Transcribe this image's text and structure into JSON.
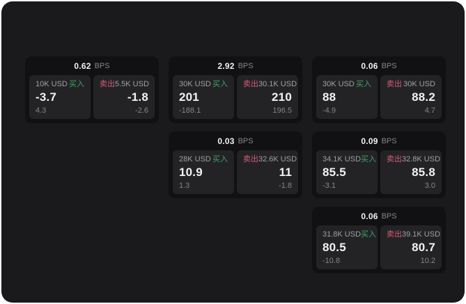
{
  "theme": {
    "page_bg": "#ffffff",
    "panel_bg": "#1a1a1c",
    "card_bg": "#111114",
    "tile_bg": "#232326",
    "text_primary": "#f2f2f3",
    "text_secondary": "#a0a0a5",
    "text_muted": "#86868b",
    "buy_color": "#3fa564",
    "sell_color": "#d85c74"
  },
  "labels": {
    "bps_unit": "BPS",
    "buy": "买入",
    "sell": "卖出"
  },
  "cards": [
    {
      "col": 1,
      "row": 1,
      "bps": "0.62",
      "buy": {
        "amount": "10K USD",
        "price": "-3.7",
        "delta": "4.3"
      },
      "sell": {
        "amount": "5.5K USD",
        "price": "-1.8",
        "delta": "-2.6"
      }
    },
    {
      "col": 2,
      "row": 1,
      "bps": "2.92",
      "buy": {
        "amount": "30K USD",
        "price": "201",
        "delta": "-188.1"
      },
      "sell": {
        "amount": "30.1K USD",
        "price": "210",
        "delta": "196.5"
      }
    },
    {
      "col": 3,
      "row": 1,
      "bps": "0.06",
      "buy": {
        "amount": "30K USD",
        "price": "88",
        "delta": "-4.9"
      },
      "sell": {
        "amount": "30K USD",
        "price": "88.2",
        "delta": "4.7"
      }
    },
    {
      "col": 2,
      "row": 2,
      "bps": "0.03",
      "buy": {
        "amount": "28K USD",
        "price": "10.9",
        "delta": "1.3"
      },
      "sell": {
        "amount": "32.6K USD",
        "price": "11",
        "delta": "-1.8"
      }
    },
    {
      "col": 3,
      "row": 2,
      "bps": "0.09",
      "buy": {
        "amount": "34.1K USD",
        "price": "85.5",
        "delta": "-3.1"
      },
      "sell": {
        "amount": "32.8K USD",
        "price": "85.8",
        "delta": "3.0"
      }
    },
    {
      "col": 3,
      "row": 3,
      "bps": "0.06",
      "buy": {
        "amount": "31.8K USD",
        "price": "80.5",
        "delta": "-10.8"
      },
      "sell": {
        "amount": "39.1K USD",
        "price": "80.7",
        "delta": "10.2"
      }
    }
  ]
}
